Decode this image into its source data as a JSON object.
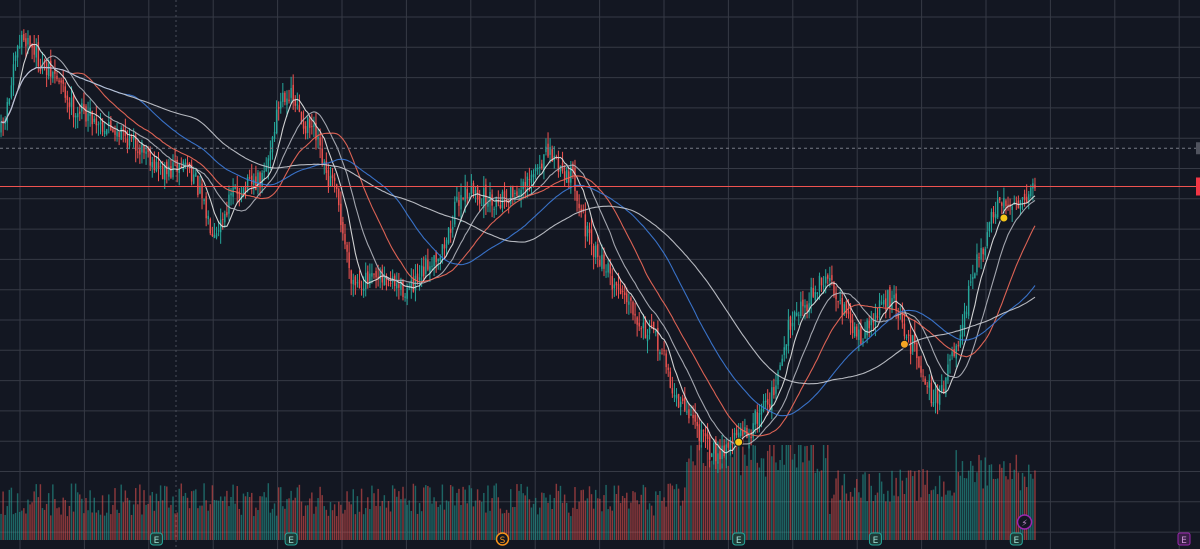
{
  "chart_data": {
    "type": "candlestick",
    "colors": {
      "background": "#131722",
      "grid": "#363a45",
      "up": "#26a69a",
      "down": "#ef5350",
      "price_line": "#ef5350",
      "price_line_tag": "#f23645"
    },
    "price": {
      "ylim": [
        0.0,
        100.0
      ],
      "last_price": 63.0,
      "dashed_level": 71.5
    },
    "volume": {
      "ylim": [
        0,
        100
      ],
      "up_color": "#26a69a",
      "down_color": "#ef5350"
    },
    "anchors": [
      {
        "t": 0,
        "v": 75
      },
      {
        "t": 12,
        "v": 96
      },
      {
        "t": 25,
        "v": 88
      },
      {
        "t": 38,
        "v": 80
      },
      {
        "t": 55,
        "v": 76
      },
      {
        "t": 68,
        "v": 72
      },
      {
        "t": 80,
        "v": 66
      },
      {
        "t": 90,
        "v": 68
      },
      {
        "t": 104,
        "v": 54
      },
      {
        "t": 115,
        "v": 62
      },
      {
        "t": 126,
        "v": 64
      },
      {
        "t": 138,
        "v": 84
      },
      {
        "t": 150,
        "v": 76
      },
      {
        "t": 160,
        "v": 64
      },
      {
        "t": 172,
        "v": 42
      },
      {
        "t": 185,
        "v": 42
      },
      {
        "t": 198,
        "v": 40
      },
      {
        "t": 212,
        "v": 48
      },
      {
        "t": 225,
        "v": 62
      },
      {
        "t": 238,
        "v": 60
      },
      {
        "t": 252,
        "v": 62
      },
      {
        "t": 265,
        "v": 70
      },
      {
        "t": 275,
        "v": 66
      },
      {
        "t": 288,
        "v": 48
      },
      {
        "t": 300,
        "v": 40
      },
      {
        "t": 315,
        "v": 30
      },
      {
        "t": 330,
        "v": 14
      },
      {
        "t": 345,
        "v": 4
      },
      {
        "t": 360,
        "v": 8
      },
      {
        "t": 372,
        "v": 16
      },
      {
        "t": 385,
        "v": 36
      },
      {
        "t": 400,
        "v": 42
      },
      {
        "t": 415,
        "v": 30
      },
      {
        "t": 430,
        "v": 38
      },
      {
        "t": 440,
        "v": 28
      },
      {
        "t": 452,
        "v": 16
      },
      {
        "t": 462,
        "v": 26
      },
      {
        "t": 472,
        "v": 46
      },
      {
        "t": 482,
        "v": 58
      },
      {
        "t": 492,
        "v": 60
      },
      {
        "t": 500,
        "v": 63
      }
    ],
    "candle_count": 500,
    "moving_averages": [
      {
        "period": 9,
        "color": "#e6e6e6"
      },
      {
        "period": 20,
        "color": "#b2b5be"
      },
      {
        "period": 35,
        "color": "#f26a5a"
      },
      {
        "period": 60,
        "color": "#3d7bd9"
      },
      {
        "period": 90,
        "color": "#c9cbd1"
      }
    ],
    "dividend_markers": [
      {
        "index": 356,
        "color": "#f5c518"
      },
      {
        "index": 436,
        "color": "#f5a623"
      },
      {
        "index": 484,
        "color": "#f5c518"
      }
    ],
    "event_markers": [
      {
        "label": "E",
        "index": 75,
        "kind": "earnings"
      },
      {
        "label": "E",
        "index": 140,
        "kind": "earnings"
      },
      {
        "label": "S",
        "index": 242,
        "kind": "split"
      },
      {
        "label": "E",
        "index": 356,
        "kind": "earnings"
      },
      {
        "label": "E",
        "index": 422,
        "kind": "earnings"
      },
      {
        "label": "E",
        "index": 490,
        "kind": "earnings"
      },
      {
        "label": "⚡",
        "index": 493,
        "kind": "news"
      }
    ],
    "future_marker": {
      "label": "E"
    }
  }
}
